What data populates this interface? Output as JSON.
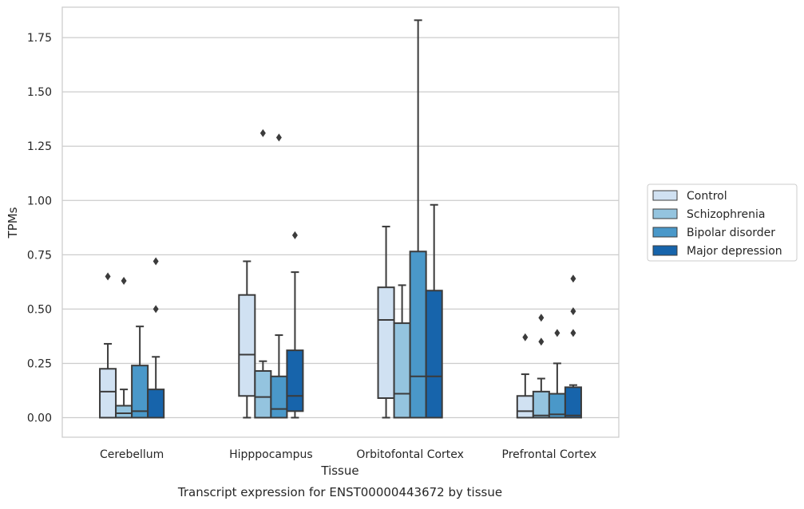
{
  "chart_data": {
    "type": "box",
    "xlabel": "Tissue",
    "ylabel": "TPMs",
    "caption": "Transcript expression for ENST00000443672 by tissue",
    "ylim": [
      -0.09,
      1.89
    ],
    "yticks": [
      "0.00",
      "0.25",
      "0.50",
      "0.75",
      "1.00",
      "1.25",
      "1.50",
      "1.75"
    ],
    "grid": true,
    "legend_position": "right",
    "categories": [
      "Cerebellum",
      "Hipppocampus",
      "Orbitofontal Cortex",
      "Prefrontal Cortex"
    ],
    "series": [
      {
        "name": "Control",
        "color": "#d0e1f2",
        "boxes": [
          {
            "whislo": 0.0,
            "q1": 0.0,
            "med": 0.12,
            "q3": 0.225,
            "whishi": 0.34,
            "fliers": [
              0.65
            ]
          },
          {
            "whislo": 0.0,
            "q1": 0.1,
            "med": 0.29,
            "q3": 0.565,
            "whishi": 0.72,
            "fliers": []
          },
          {
            "whislo": 0.0,
            "q1": 0.09,
            "med": 0.45,
            "q3": 0.6,
            "whishi": 0.88,
            "fliers": []
          },
          {
            "whislo": 0.0,
            "q1": 0.0,
            "med": 0.03,
            "q3": 0.1,
            "whishi": 0.2,
            "fliers": [
              0.37
            ]
          }
        ]
      },
      {
        "name": "Schizophrenia",
        "color": "#94c4df",
        "boxes": [
          {
            "whislo": 0.0,
            "q1": 0.0,
            "med": 0.02,
            "q3": 0.055,
            "whishi": 0.13,
            "fliers": [
              0.63
            ]
          },
          {
            "whislo": 0.0,
            "q1": 0.0,
            "med": 0.095,
            "q3": 0.215,
            "whishi": 0.26,
            "fliers": [
              1.31
            ]
          },
          {
            "whislo": 0.0,
            "q1": 0.0,
            "med": 0.11,
            "q3": 0.435,
            "whishi": 0.61,
            "fliers": []
          },
          {
            "whislo": 0.0,
            "q1": 0.0,
            "med": 0.01,
            "q3": 0.12,
            "whishi": 0.18,
            "fliers": [
              0.35,
              0.46
            ]
          }
        ]
      },
      {
        "name": "Bipolar disorder",
        "color": "#4a98c9",
        "boxes": [
          {
            "whislo": 0.0,
            "q1": 0.0,
            "med": 0.03,
            "q3": 0.24,
            "whishi": 0.42,
            "fliers": []
          },
          {
            "whislo": 0.0,
            "q1": 0.0,
            "med": 0.04,
            "q3": 0.19,
            "whishi": 0.38,
            "fliers": [
              1.29
            ]
          },
          {
            "whislo": 0.0,
            "q1": 0.0,
            "med": 0.19,
            "q3": 0.765,
            "whishi": 1.83,
            "fliers": []
          },
          {
            "whislo": 0.0,
            "q1": 0.0,
            "med": 0.015,
            "q3": 0.11,
            "whishi": 0.25,
            "fliers": [
              0.39
            ]
          }
        ]
      },
      {
        "name": "Major depression",
        "color": "#1764ab",
        "boxes": [
          {
            "whislo": 0.0,
            "q1": 0.0,
            "med": 0.0,
            "q3": 0.13,
            "whishi": 0.28,
            "fliers": [
              0.5,
              0.72
            ]
          },
          {
            "whislo": 0.0,
            "q1": 0.03,
            "med": 0.1,
            "q3": 0.31,
            "whishi": 0.67,
            "fliers": [
              0.84
            ]
          },
          {
            "whislo": 0.0,
            "q1": 0.0,
            "med": 0.19,
            "q3": 0.585,
            "whishi": 0.98,
            "fliers": []
          },
          {
            "whislo": 0.0,
            "q1": 0.0,
            "med": 0.01,
            "q3": 0.14,
            "whishi": 0.15,
            "fliers": [
              0.39,
              0.49,
              0.64
            ]
          }
        ]
      }
    ]
  }
}
